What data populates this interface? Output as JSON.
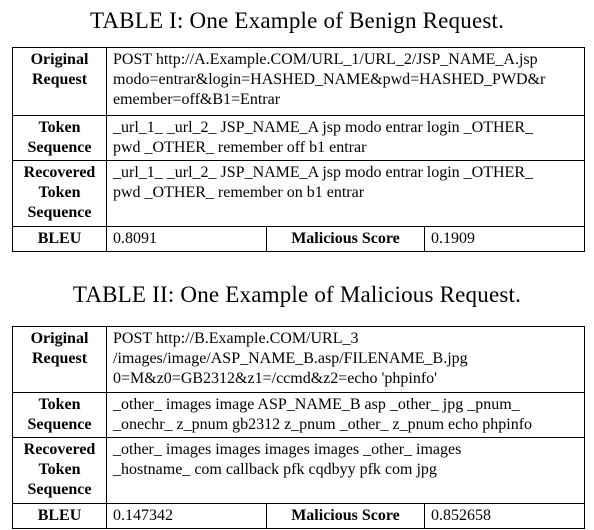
{
  "table1": {
    "caption": "TABLE I: One Example of Benign Request.",
    "rows": [
      {
        "label_lines": [
          "Original",
          "Request"
        ],
        "lines": [
          "POST http://A.Example.COM/URL_1/URL_2/JSP_NAME_A.jsp",
          "modo=entrar&login=HASHED_NAME&pwd=HASHED_PWD&r",
          "emember=off&B1=Entrar"
        ]
      },
      {
        "label_lines": [
          "Token",
          "Sequence"
        ],
        "lines": [
          "_url_1_ _url_2_ JSP_NAME_A jsp modo entrar login _OTHER_",
          "pwd _OTHER_ remember off b1 entrar"
        ]
      },
      {
        "label_lines": [
          "Recovered",
          "Token",
          "Sequence"
        ],
        "lines": [
          "_url_1_ _url_2_ JSP_NAME_A jsp modo entrar login _OTHER_",
          "pwd _OTHER_ remember on b1 entrar"
        ]
      }
    ],
    "bleu_label": "BLEU",
    "bleu_value": "0.8091",
    "malicious_label": "Malicious Score",
    "malicious_value": "0.1909"
  },
  "table2": {
    "caption": "TABLE II: One Example of Malicious Request.",
    "rows": [
      {
        "label_lines": [
          "Original",
          "Request"
        ],
        "lines": [
          "POST http://B.Example.COM/URL_3",
          "/images/image/ASP_NAME_B.asp/FILENAME_B.jpg",
          "0=M&z0=GB2312&z1=/ccmd&z2=echo 'phpinfo'"
        ]
      },
      {
        "label_lines": [
          "Token",
          "Sequence"
        ],
        "lines": [
          "_other_ images image ASP_NAME_B asp _other_ jpg _pnum_",
          "_onechr_ z_pnum gb2312 z_pnum _other_ z_pnum echo phpinfo"
        ]
      },
      {
        "label_lines": [
          "Recovered",
          "Token",
          "Sequence"
        ],
        "lines": [
          "_other_ images images images images _other_ images",
          "_hostname_ com callback pfk cqdbyy pfk com jpg"
        ]
      }
    ],
    "bleu_label": "BLEU",
    "bleu_value": "0.147342",
    "malicious_label": "Malicious Score",
    "malicious_value": "0.852658"
  }
}
